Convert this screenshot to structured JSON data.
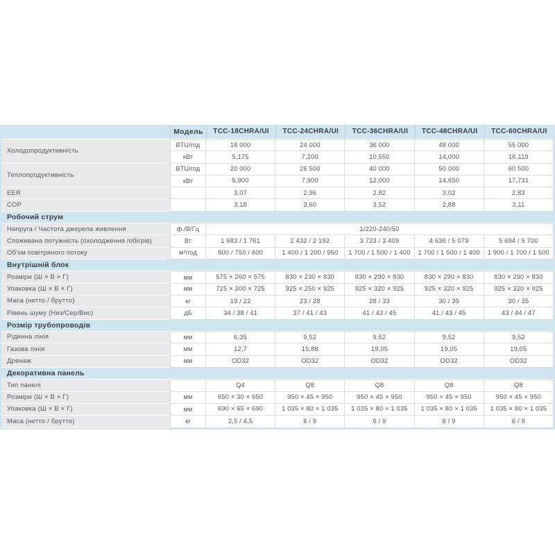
{
  "colors": {
    "band_blue": "#cfe6f0",
    "label_gray": "#e9e9eb",
    "cell_border": "#dcdde0",
    "text_body": "#55565b",
    "text_bold": "#3b3c41"
  },
  "table": {
    "model_label": "Модель",
    "models": [
      "TCC-18CHRA/UI",
      "TCC-24CHRA/UI",
      "TCC-36CHRA/UI",
      "TCC-48CHRA/UI",
      "TCC-60CHRA/UI"
    ],
    "rows": [
      {
        "kind": "data",
        "label": "Холодопродуктивність",
        "label_rowspan": 2,
        "unit": "BTU/год",
        "values": [
          "18 000",
          "24 000",
          "36 000",
          "48 000",
          "55 000"
        ]
      },
      {
        "kind": "data",
        "unit": "кВт",
        "values": [
          "5,175",
          "7,200",
          "10,550",
          "14,000",
          "16,119"
        ]
      },
      {
        "kind": "data",
        "label": "Теплопродуктивність",
        "label_rowspan": 2,
        "unit": "BTU/год",
        "values": [
          "20 000",
          "26 500",
          "40 000",
          "50 000",
          "60 500"
        ]
      },
      {
        "kind": "data",
        "unit": "кВт",
        "values": [
          "5,900",
          "7,900",
          "12,000",
          "14,650",
          "17,731"
        ]
      },
      {
        "kind": "data",
        "label": "EER",
        "unit": "",
        "values": [
          "3,07",
          "2,96",
          "2,82",
          "3,02",
          "2,83"
        ]
      },
      {
        "kind": "data",
        "label": "COP",
        "unit": "",
        "values": [
          "3,18",
          "3,60",
          "3,52",
          "2,88",
          "3,11"
        ]
      },
      {
        "kind": "section",
        "label": "Робочий струм"
      },
      {
        "kind": "data",
        "label": "Напруга / Частота джерела живлення",
        "unit": "ф./В/Гц",
        "span_value": "1/220-240/50"
      },
      {
        "kind": "data",
        "label": "Споживана потужність (охолодження /обігрів)",
        "unit": "Вт",
        "values": [
          "1 683 / 1 761",
          "2 432 / 2 192",
          "3 723 / 3 409",
          "4 636 / 5 079",
          "5 694 / 5 700"
        ]
      },
      {
        "kind": "data",
        "label": "Об'єм повітряного потоку",
        "unit": "м³/год",
        "values": [
          "800 / 750 / 600",
          "1 400 / 1 200 / 950",
          "1 700 / 1 500 / 1 400",
          "1 700 / 1 500 / 1 400",
          "1 900 / 1 700 / 1 500"
        ]
      },
      {
        "kind": "section",
        "label": "Внутрішній блок"
      },
      {
        "kind": "data",
        "label": "Розміри (Ш × В × Г)",
        "unit": "мм",
        "values": [
          "575 × 260 × 575",
          "830 × 230 × 830",
          "830 × 290 × 830",
          "830 × 290 × 830",
          "830 × 290 × 830"
        ]
      },
      {
        "kind": "data",
        "label": "Упаковка (Ш × В × Г)",
        "unit": "мм",
        "values": [
          "725 × 300 × 725",
          "925 × 250 × 925",
          "925 × 320 × 925",
          "925 × 320 × 925",
          "925 × 320 × 925"
        ]
      },
      {
        "kind": "data",
        "label": "Маса (нетто / брутто)",
        "unit": "кг",
        "values": [
          "19 / 22",
          "23 / 28",
          "28 / 33",
          "30 / 35",
          "30 / 35"
        ]
      },
      {
        "kind": "data",
        "label": "Рівень шуму (Низ/Сер/Вис)",
        "unit": "дБ",
        "values": [
          "34 / 38 / 41",
          "37 / 41 / 43",
          "41 / 43 / 45",
          "41 / 43 / 45",
          "43 / 44 / 47"
        ]
      },
      {
        "kind": "section",
        "label": "Розмір трубопроводів"
      },
      {
        "kind": "data",
        "label": "Рідинна лінія",
        "unit": "мм",
        "values": [
          "6,35",
          "9,52",
          "9,52",
          "9,52",
          "9,52"
        ]
      },
      {
        "kind": "data",
        "label": "Газова лінія",
        "unit": "мм",
        "values": [
          "12,7",
          "15,88",
          "19,05",
          "19,05",
          "19,05"
        ]
      },
      {
        "kind": "data",
        "label": "Дренаж",
        "unit": "мм",
        "values": [
          "OD32",
          "OD32",
          "OD32",
          "OD32",
          "OD32"
        ]
      },
      {
        "kind": "section",
        "label": "Декоративна панель"
      },
      {
        "kind": "data",
        "label": "Тип панелі",
        "unit": "",
        "values": [
          "Q4",
          "Q8",
          "Q8",
          "Q8",
          "Q8"
        ]
      },
      {
        "kind": "data",
        "label": "Розміри (Ш × В × Г)",
        "unit": "мм",
        "values": [
          "650 × 30 × 650",
          "950 × 45 × 950",
          "950 × 45 × 950",
          "950 × 45 × 950",
          "950 × 45 × 950"
        ]
      },
      {
        "kind": "data",
        "label": "Упаковка (Ш × В × Г)",
        "unit": "мм",
        "values": [
          "690 × 65 × 690",
          "1 035 × 80 × 1 035",
          "1 035 × 80 × 1 035",
          "1 035 × 80 × 1 035",
          "1 035 × 80 × 1 035"
        ]
      },
      {
        "kind": "data",
        "label": "Маса (нетто / брутто)",
        "unit": "кг",
        "values": [
          "2,5 / 4,5",
          "6 / 9",
          "6 / 9",
          "6 / 9",
          "6 / 9"
        ]
      }
    ]
  }
}
